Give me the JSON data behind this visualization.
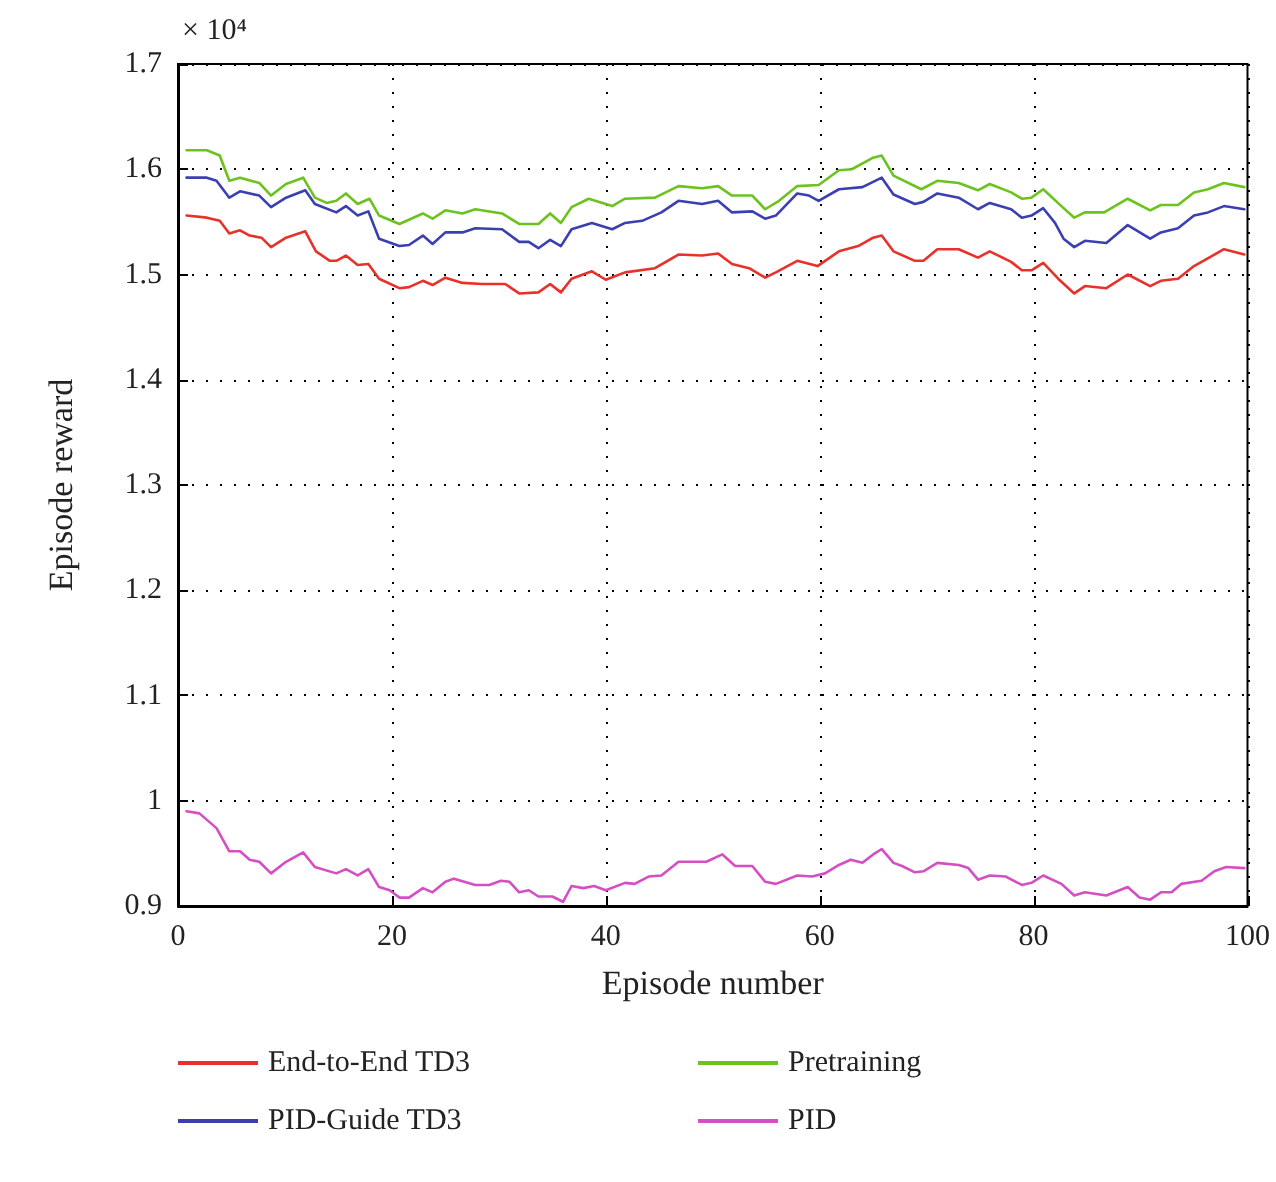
{
  "chart_data": {
    "type": "line",
    "xlabel": "Episode number",
    "ylabel": "Episode reward",
    "annotations": [
      "× 10⁴"
    ],
    "xlim": [
      0,
      100
    ],
    "xticks": [
      0,
      20,
      40,
      60,
      80,
      100
    ],
    "ylim": [
      0.9,
      1.7
    ],
    "yticks": [
      0.9,
      1,
      1.1,
      1.2,
      1.3,
      1.4,
      1.5,
      1.6,
      1.7
    ],
    "grid": true,
    "legend": "bottom",
    "marker": "none",
    "line_style": "solid",
    "series": [
      {
        "name": "End-to-End TD3",
        "color": "#e8312a",
        "x": [
          0.8,
          2.7,
          3.9,
          4.8,
          5.8,
          6.7,
          7.8,
          8.7,
          10.1,
          11.9,
          12.9,
          14.2,
          14.8,
          15.7,
          16.8,
          17.8,
          18.8,
          20.7,
          21.6,
          22.9,
          23.8,
          25,
          26.6,
          28.4,
          30.6,
          31.9,
          33.7,
          34.8,
          35.8,
          36.8,
          38.7,
          40,
          41.8,
          44.6,
          46.8,
          49,
          50.5,
          51.8,
          53.4,
          54.9,
          55.9,
          57.9,
          59.8,
          61.8,
          63.6,
          65,
          65.8,
          66.9,
          68.9,
          69.7,
          71,
          73,
          74.8,
          75.9,
          77.9,
          78.9,
          79.8,
          80.9,
          82.3,
          83.8,
          84.8,
          86.8,
          88.8,
          90.9,
          91.9,
          93.5,
          95,
          97.8,
          99.7
        ],
        "values": [
          1.556,
          1.554,
          1.551,
          1.539,
          1.542,
          1.537,
          1.535,
          1.526,
          1.535,
          1.541,
          1.522,
          1.513,
          1.513,
          1.518,
          1.509,
          1.51,
          1.496,
          1.487,
          1.488,
          1.494,
          1.49,
          1.497,
          1.492,
          1.491,
          1.491,
          1.482,
          1.483,
          1.491,
          1.483,
          1.496,
          1.503,
          1.495,
          1.502,
          1.506,
          1.519,
          1.518,
          1.52,
          1.51,
          1.506,
          1.497,
          1.502,
          1.513,
          1.508,
          1.522,
          1.527,
          1.535,
          1.537,
          1.522,
          1.513,
          1.513,
          1.524,
          1.524,
          1.516,
          1.522,
          1.512,
          1.504,
          1.504,
          1.511,
          1.496,
          1.482,
          1.489,
          1.487,
          1.5,
          1.489,
          1.494,
          1.496,
          1.508,
          1.524,
          1.519
        ]
      },
      {
        "name": "PID-Guide TD3",
        "color": "#3b3fb0",
        "x": [
          0.8,
          2.7,
          3.6,
          4.8,
          5.8,
          7.6,
          8.7,
          10.1,
          11.9,
          12.8,
          14.8,
          15.7,
          16.8,
          17.8,
          18.8,
          20.7,
          21.6,
          22.9,
          23.8,
          25,
          26.6,
          27.8,
          30.3,
          31.9,
          32.8,
          33.7,
          34.8,
          35.8,
          36.8,
          38.7,
          40.6,
          41.8,
          43.4,
          45.2,
          46.8,
          49,
          50.5,
          51.8,
          53.7,
          54.9,
          55.9,
          57.9,
          59,
          59.9,
          61.8,
          64,
          65.8,
          66.9,
          68.9,
          69.7,
          71,
          73,
          74.8,
          75.9,
          77.9,
          78.9,
          79.8,
          80.9,
          82,
          82.8,
          83.8,
          84.8,
          86.8,
          88.8,
          90.9,
          91.9,
          93.5,
          95,
          96.3,
          97.8,
          99.7
        ],
        "values": [
          1.592,
          1.592,
          1.589,
          1.573,
          1.579,
          1.575,
          1.564,
          1.573,
          1.58,
          1.567,
          1.559,
          1.565,
          1.556,
          1.56,
          1.534,
          1.527,
          1.528,
          1.537,
          1.529,
          1.54,
          1.54,
          1.544,
          1.543,
          1.531,
          1.531,
          1.525,
          1.533,
          1.527,
          1.543,
          1.549,
          1.543,
          1.549,
          1.551,
          1.559,
          1.57,
          1.567,
          1.57,
          1.559,
          1.56,
          1.553,
          1.556,
          1.577,
          1.575,
          1.57,
          1.581,
          1.583,
          1.592,
          1.576,
          1.567,
          1.569,
          1.577,
          1.573,
          1.562,
          1.568,
          1.562,
          1.554,
          1.556,
          1.563,
          1.549,
          1.534,
          1.526,
          1.532,
          1.53,
          1.547,
          1.534,
          1.54,
          1.544,
          1.556,
          1.559,
          1.565,
          1.562
        ]
      },
      {
        "name": "Pretraining",
        "color": "#6cc21e",
        "x": [
          0.8,
          2.7,
          3.9,
          4.8,
          5.8,
          7.6,
          8.7,
          10.1,
          11.7,
          12.8,
          13.9,
          14.8,
          15.7,
          16.8,
          17.9,
          18.8,
          20.7,
          22.9,
          23.8,
          25,
          26.6,
          27.8,
          30.3,
          31.9,
          33.7,
          34.8,
          35.8,
          36.8,
          38.4,
          40.6,
          41.8,
          44.6,
          46.8,
          49,
          50.5,
          51.8,
          53.7,
          54.9,
          56.2,
          57.9,
          59.9,
          61.8,
          63,
          65,
          65.8,
          66.9,
          69.5,
          71,
          73,
          74.8,
          75.9,
          77.9,
          78.9,
          79.8,
          80.9,
          82.6,
          83.8,
          84.8,
          86.6,
          88.8,
          90.9,
          91.9,
          93.5,
          95,
          96.3,
          97.8,
          99.7
        ],
        "values": [
          1.618,
          1.618,
          1.613,
          1.589,
          1.592,
          1.587,
          1.575,
          1.586,
          1.592,
          1.573,
          1.568,
          1.57,
          1.577,
          1.567,
          1.572,
          1.556,
          1.548,
          1.558,
          1.553,
          1.561,
          1.558,
          1.562,
          1.558,
          1.548,
          1.548,
          1.558,
          1.549,
          1.564,
          1.572,
          1.565,
          1.572,
          1.573,
          1.584,
          1.582,
          1.584,
          1.575,
          1.575,
          1.562,
          1.57,
          1.584,
          1.585,
          1.599,
          1.6,
          1.611,
          1.613,
          1.594,
          1.581,
          1.589,
          1.587,
          1.58,
          1.586,
          1.578,
          1.572,
          1.573,
          1.581,
          1.565,
          1.554,
          1.559,
          1.559,
          1.572,
          1.561,
          1.566,
          1.566,
          1.578,
          1.581,
          1.587,
          1.583
        ]
      },
      {
        "name": "PID",
        "color": "#d44fc4",
        "x": [
          0.8,
          2,
          3.6,
          4.8,
          5.8,
          6.7,
          7.6,
          8.7,
          10.1,
          11.7,
          12.8,
          14.8,
          15.7,
          16.8,
          17.8,
          18.8,
          19.8,
          20.7,
          21.6,
          22.9,
          23.8,
          25,
          25.8,
          27.8,
          29.1,
          30.2,
          31,
          31.9,
          32.8,
          33.7,
          35,
          36,
          36.8,
          37.9,
          38.9,
          40,
          41.8,
          42.7,
          44,
          45.2,
          46.8,
          49.4,
          50.9,
          52.1,
          53.7,
          54.9,
          55.9,
          57.9,
          59.3,
          60.5,
          61.8,
          62.9,
          64,
          65,
          65.8,
          66.9,
          67.7,
          68.9,
          69.7,
          71,
          73,
          73.9,
          74.8,
          75.9,
          77.4,
          78.9,
          79.8,
          80.9,
          82.6,
          83.8,
          84.8,
          86.8,
          88.8,
          89.9,
          90.9,
          91.9,
          92.9,
          93.8,
          95.7,
          96.9,
          98,
          99.7
        ],
        "values": [
          0.99,
          0.988,
          0.974,
          0.952,
          0.952,
          0.944,
          0.942,
          0.931,
          0.942,
          0.951,
          0.937,
          0.931,
          0.935,
          0.929,
          0.935,
          0.918,
          0.915,
          0.908,
          0.908,
          0.917,
          0.913,
          0.923,
          0.926,
          0.92,
          0.92,
          0.924,
          0.923,
          0.913,
          0.915,
          0.909,
          0.909,
          0.904,
          0.919,
          0.917,
          0.919,
          0.915,
          0.922,
          0.921,
          0.928,
          0.929,
          0.942,
          0.942,
          0.949,
          0.938,
          0.938,
          0.923,
          0.921,
          0.929,
          0.928,
          0.931,
          0.939,
          0.944,
          0.941,
          0.949,
          0.954,
          0.941,
          0.938,
          0.932,
          0.933,
          0.941,
          0.939,
          0.936,
          0.925,
          0.929,
          0.928,
          0.92,
          0.922,
          0.929,
          0.921,
          0.91,
          0.913,
          0.91,
          0.918,
          0.908,
          0.906,
          0.913,
          0.913,
          0.921,
          0.924,
          0.933,
          0.937,
          0.936
        ]
      }
    ]
  }
}
